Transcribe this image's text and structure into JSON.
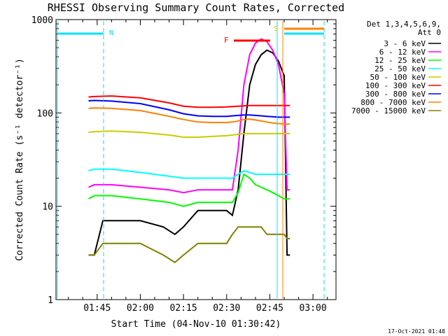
{
  "chart_data": {
    "type": "line",
    "title": "RHESSI Observing Summary Count Rates, Corrected",
    "xlabel": "Start Time (04-Nov-10 01:30:42)",
    "ylabel": "Corrected Count Rate (s⁻¹ detector⁻¹)",
    "yscale": "log",
    "xlim": [
      "01:30:42",
      "03:08:00"
    ],
    "ylim": [
      1,
      1000
    ],
    "x_ticks": [
      "01:45",
      "02:00",
      "02:15",
      "02:30",
      "02:45",
      "03:00"
    ],
    "y_ticks": [
      "1",
      "10",
      "100",
      "1000"
    ],
    "grid": false,
    "legend": {
      "placement": "right",
      "header": [
        "Det 1,3,4,5,6,9,",
        "Att 0"
      ]
    },
    "footer_date": "17-Oct-2021 01:48",
    "flags": [
      {
        "label": "N",
        "color": "#00e0ff"
      },
      {
        "label": "S",
        "color": "#00e0ff"
      },
      {
        "label": "F",
        "color": "#ff0000"
      }
    ],
    "series": [
      {
        "name": "3 - 6 keV",
        "color": "#000000",
        "x": [
          "01:42",
          "01:44",
          "01:47",
          "01:52",
          "02:00",
          "02:08",
          "02:12",
          "02:15",
          "02:20",
          "02:25",
          "02:30",
          "02:32",
          "02:34",
          "02:36",
          "02:38",
          "02:40",
          "02:42",
          "02:44",
          "02:46",
          "02:48",
          "02:50",
          "02:51",
          "02:52"
        ],
        "y": [
          3,
          3,
          7,
          7,
          7,
          6,
          5,
          6,
          9,
          9,
          9,
          8,
          15,
          60,
          200,
          330,
          420,
          470,
          440,
          360,
          250,
          3,
          3
        ]
      },
      {
        "name": "6 - 12 keV",
        "color": "#ff00ff",
        "x": [
          "01:42",
          "01:44",
          "01:50",
          "02:00",
          "02:10",
          "02:15",
          "02:20",
          "02:25",
          "02:30",
          "02:32",
          "02:34",
          "02:36",
          "02:38",
          "02:40",
          "02:42",
          "02:44",
          "02:46",
          "02:48",
          "02:50",
          "02:51",
          "02:52"
        ],
        "y": [
          16,
          17,
          17,
          16,
          15,
          14,
          15,
          15,
          15,
          15,
          40,
          200,
          420,
          560,
          620,
          580,
          470,
          330,
          160,
          15,
          15
        ]
      },
      {
        "name": "12 - 25 keV",
        "color": "#00ff00",
        "x": [
          "01:42",
          "01:44",
          "01:50",
          "02:00",
          "02:10",
          "02:15",
          "02:20",
          "02:25",
          "02:30",
          "02:32",
          "02:34",
          "02:36",
          "02:38",
          "02:40",
          "02:42",
          "02:44",
          "02:46",
          "02:48",
          "02:50",
          "02:51",
          "02:52"
        ],
        "y": [
          12,
          13,
          13,
          12,
          11,
          10,
          11,
          11,
          11,
          11,
          14,
          22,
          20,
          17,
          16,
          15,
          14,
          13,
          12,
          12,
          12
        ]
      },
      {
        "name": "25 - 50 keV",
        "color": "#00ffff",
        "x": [
          "01:42",
          "01:44",
          "01:50",
          "02:00",
          "02:10",
          "02:15",
          "02:20",
          "02:25",
          "02:30",
          "02:32",
          "02:34",
          "02:36",
          "02:38",
          "02:40",
          "02:42",
          "02:44",
          "02:46",
          "02:48",
          "02:50",
          "02:51",
          "02:52"
        ],
        "y": [
          24,
          25,
          25,
          23,
          21,
          20,
          20,
          20,
          20,
          20,
          22,
          24,
          23,
          22,
          22,
          22,
          22,
          22,
          22,
          22,
          22
        ]
      },
      {
        "name": "50 - 100 keV",
        "color": "#cccc00",
        "x": [
          "01:42",
          "01:44",
          "01:50",
          "02:00",
          "02:10",
          "02:15",
          "02:20",
          "02:25",
          "02:30",
          "02:32",
          "02:34",
          "02:36",
          "02:38",
          "02:40",
          "02:42",
          "02:44",
          "02:46",
          "02:48",
          "02:50",
          "02:51",
          "02:52"
        ],
        "y": [
          62,
          63,
          64,
          62,
          58,
          55,
          55,
          56,
          57,
          58,
          59,
          60,
          60,
          60,
          60,
          60,
          60,
          60,
          60,
          60,
          60
        ]
      },
      {
        "name": "100 - 300 keV",
        "color": "#ff0000",
        "x": [
          "01:42",
          "01:44",
          "01:50",
          "02:00",
          "02:10",
          "02:15",
          "02:20",
          "02:25",
          "02:30",
          "02:32",
          "02:34",
          "02:36",
          "02:38",
          "02:40",
          "02:42",
          "02:44",
          "02:46",
          "02:48",
          "02:50",
          "02:51",
          "02:52"
        ],
        "y": [
          148,
          150,
          152,
          145,
          128,
          118,
          115,
          115,
          116,
          117,
          118,
          119,
          120,
          120,
          120,
          120,
          120,
          120,
          120,
          120,
          120
        ]
      },
      {
        "name": "300 - 800 keV",
        "color": "#0000ff",
        "x": [
          "01:42",
          "01:44",
          "01:50",
          "02:00",
          "02:10",
          "02:15",
          "02:20",
          "02:25",
          "02:30",
          "02:32",
          "02:34",
          "02:36",
          "02:38",
          "02:40",
          "02:42",
          "02:44",
          "02:46",
          "02:48",
          "02:50",
          "02:51",
          "02:52"
        ],
        "y": [
          135,
          136,
          134,
          126,
          108,
          98,
          93,
          92,
          92,
          93,
          94,
          95,
          95,
          94,
          93,
          92,
          91,
          90,
          90,
          90,
          90
        ]
      },
      {
        "name": "800 - 7000 keV",
        "color": "#ff8000",
        "x": [
          "01:42",
          "01:44",
          "01:50",
          "02:00",
          "02:10",
          "02:15",
          "02:20",
          "02:25",
          "02:30",
          "02:32",
          "02:34",
          "02:36",
          "02:38",
          "02:40",
          "02:42",
          "02:44",
          "02:46",
          "02:48",
          "02:50",
          "02:51",
          "02:52"
        ],
        "y": [
          112,
          113,
          112,
          106,
          92,
          85,
          80,
          79,
          79,
          80,
          82,
          85,
          86,
          84,
          82,
          80,
          78,
          77,
          76,
          76,
          76
        ]
      },
      {
        "name": "7000 - 15000 keV",
        "color": "#808000",
        "x": [
          "01:42",
          "01:44",
          "01:47",
          "01:52",
          "02:00",
          "02:08",
          "02:12",
          "02:15",
          "02:20",
          "02:25",
          "02:30",
          "02:32",
          "02:34",
          "02:36",
          "02:38",
          "02:40",
          "02:42",
          "02:44",
          "02:46",
          "02:48",
          "02:50",
          "02:51",
          "02:52"
        ],
        "y": [
          3,
          3,
          4,
          4,
          4,
          3,
          2.5,
          3,
          4,
          4,
          4,
          5,
          6,
          6,
          6,
          6,
          6,
          5,
          5,
          5,
          5,
          4.5,
          4.5
        ]
      }
    ]
  }
}
